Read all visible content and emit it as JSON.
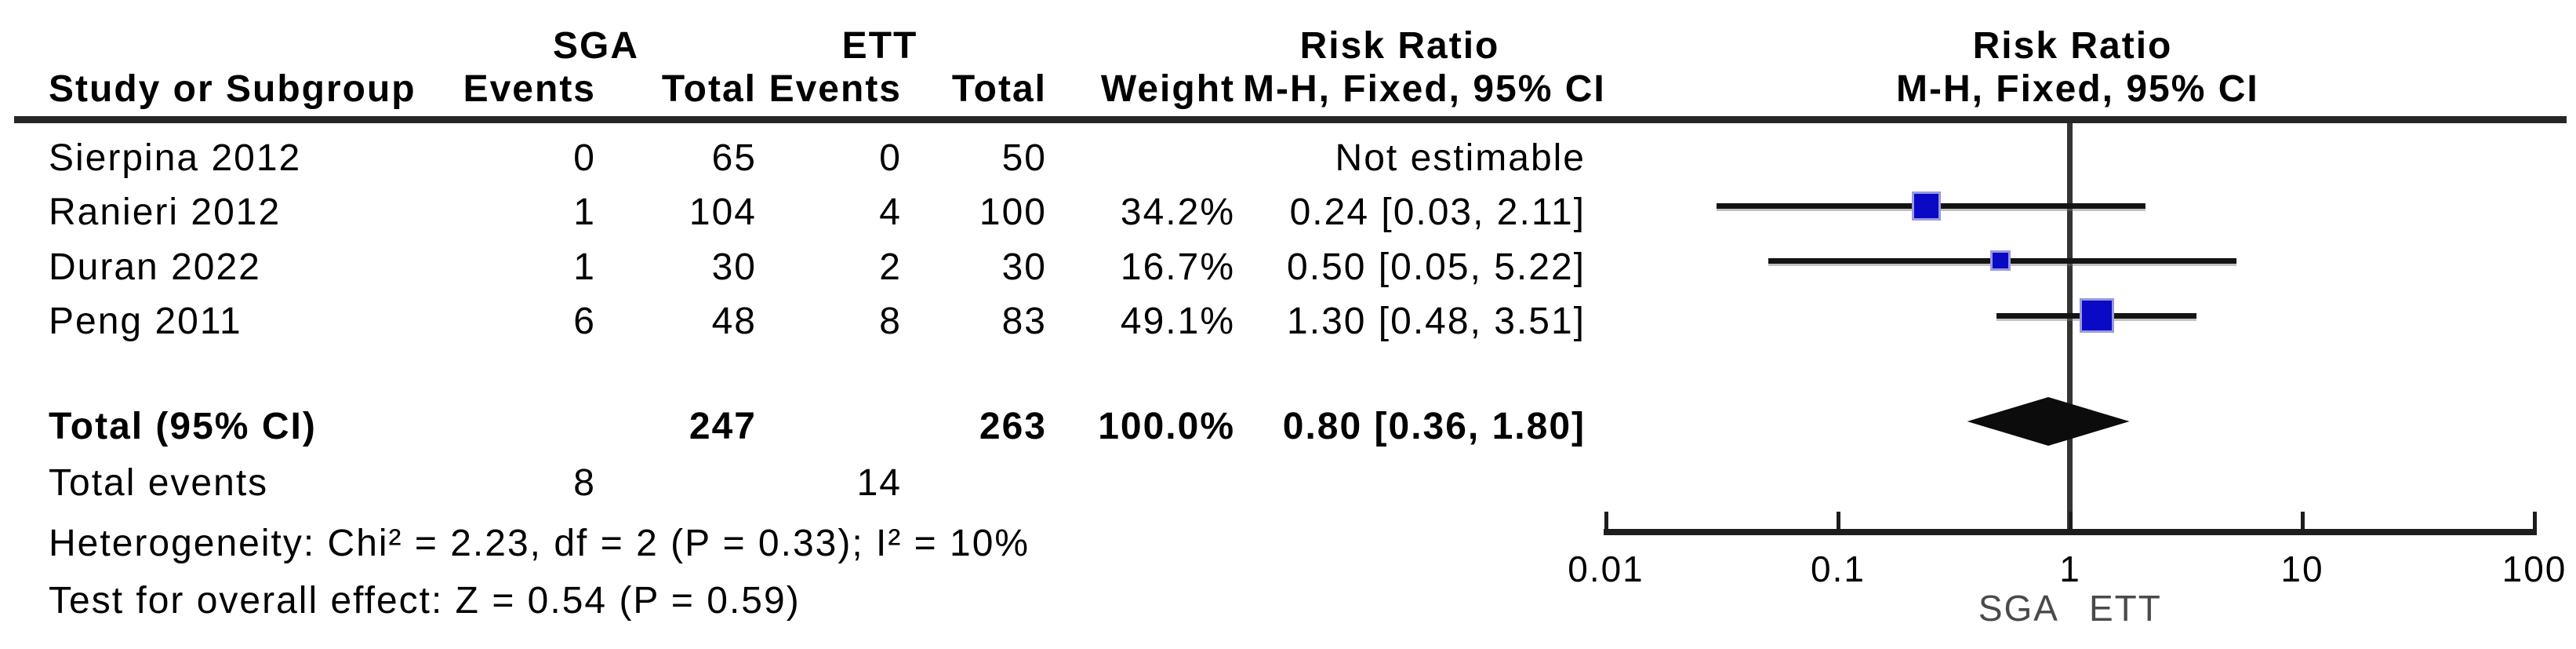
{
  "table": {
    "header": {
      "group1": "SGA",
      "group2": "ETT",
      "risk_ratio_left": "Risk Ratio",
      "method_left": "M-H, Fixed, 95% CI",
      "risk_ratio_right": "Risk Ratio",
      "method_right": "M-H, Fixed, 95% CI",
      "study": "Study or Subgroup",
      "events1": "Events",
      "total1": "Total",
      "events2": "Events",
      "total2": "Total",
      "weight": "Weight"
    },
    "studies": [
      {
        "name": "Sierpina 2012",
        "events1": "0",
        "total1": "65",
        "events2": "0",
        "total2": "50",
        "weight": "",
        "ci_text": "Not estimable"
      },
      {
        "name": "Ranieri 2012",
        "events1": "1",
        "total1": "104",
        "events2": "4",
        "total2": "100",
        "weight": "34.2%",
        "ci_text": "0.24 [0.03, 2.11]"
      },
      {
        "name": "Duran 2022",
        "events1": "1",
        "total1": "30",
        "events2": "2",
        "total2": "30",
        "weight": "16.7%",
        "ci_text": "0.50 [0.05, 5.22]"
      },
      {
        "name": "Peng 2011",
        "events1": "6",
        "total1": "48",
        "events2": "8",
        "total2": "83",
        "weight": "49.1%",
        "ci_text": "1.30 [0.48, 3.51]"
      }
    ],
    "total_row": {
      "label": "Total (95% CI)",
      "total1": "247",
      "total2": "263",
      "weight": "100.0%",
      "ci_text": "0.80 [0.36, 1.80]"
    },
    "total_events": {
      "label": "Total events",
      "events1": "8",
      "events2": "14"
    },
    "heterogeneity": "Heterogeneity: Chi² = 2.23, df = 2 (P = 0.33); I² = 10%",
    "overall_effect": "Test for overall effect: Z = 0.54 (P = 0.59)"
  },
  "chart_data": {
    "type": "forest",
    "effect_measure": "Risk Ratio",
    "method": "M-H, Fixed, 95% CI",
    "x_scale": "log10",
    "axis_ticks": [
      0.01,
      0.1,
      1,
      10,
      100
    ],
    "axis_tick_labels": [
      "0.01",
      "0.1",
      "1",
      "10",
      "100"
    ],
    "favours_left": "SGA",
    "favours_right": "ETT",
    "studies": [
      {
        "name": "Sierpina 2012",
        "estimable": false,
        "rr": null,
        "ci_low": null,
        "ci_high": null,
        "weight_pct": null
      },
      {
        "name": "Ranieri 2012",
        "estimable": true,
        "rr": 0.24,
        "ci_low": 0.03,
        "ci_high": 2.11,
        "weight_pct": 34.2
      },
      {
        "name": "Duran 2022",
        "estimable": true,
        "rr": 0.5,
        "ci_low": 0.05,
        "ci_high": 5.22,
        "weight_pct": 16.7
      },
      {
        "name": "Peng 2011",
        "estimable": true,
        "rr": 1.3,
        "ci_low": 0.48,
        "ci_high": 3.51,
        "weight_pct": 49.1
      }
    ],
    "total": {
      "label": "Total (95% CI)",
      "rr": 0.8,
      "ci_low": 0.36,
      "ci_high": 1.8,
      "weight_pct": 100.0
    },
    "marker_color": "#0a0ac6",
    "marker_border_color": "#9a9ade",
    "diamond_color": "#0c0c0c",
    "line_color": "#141414"
  }
}
